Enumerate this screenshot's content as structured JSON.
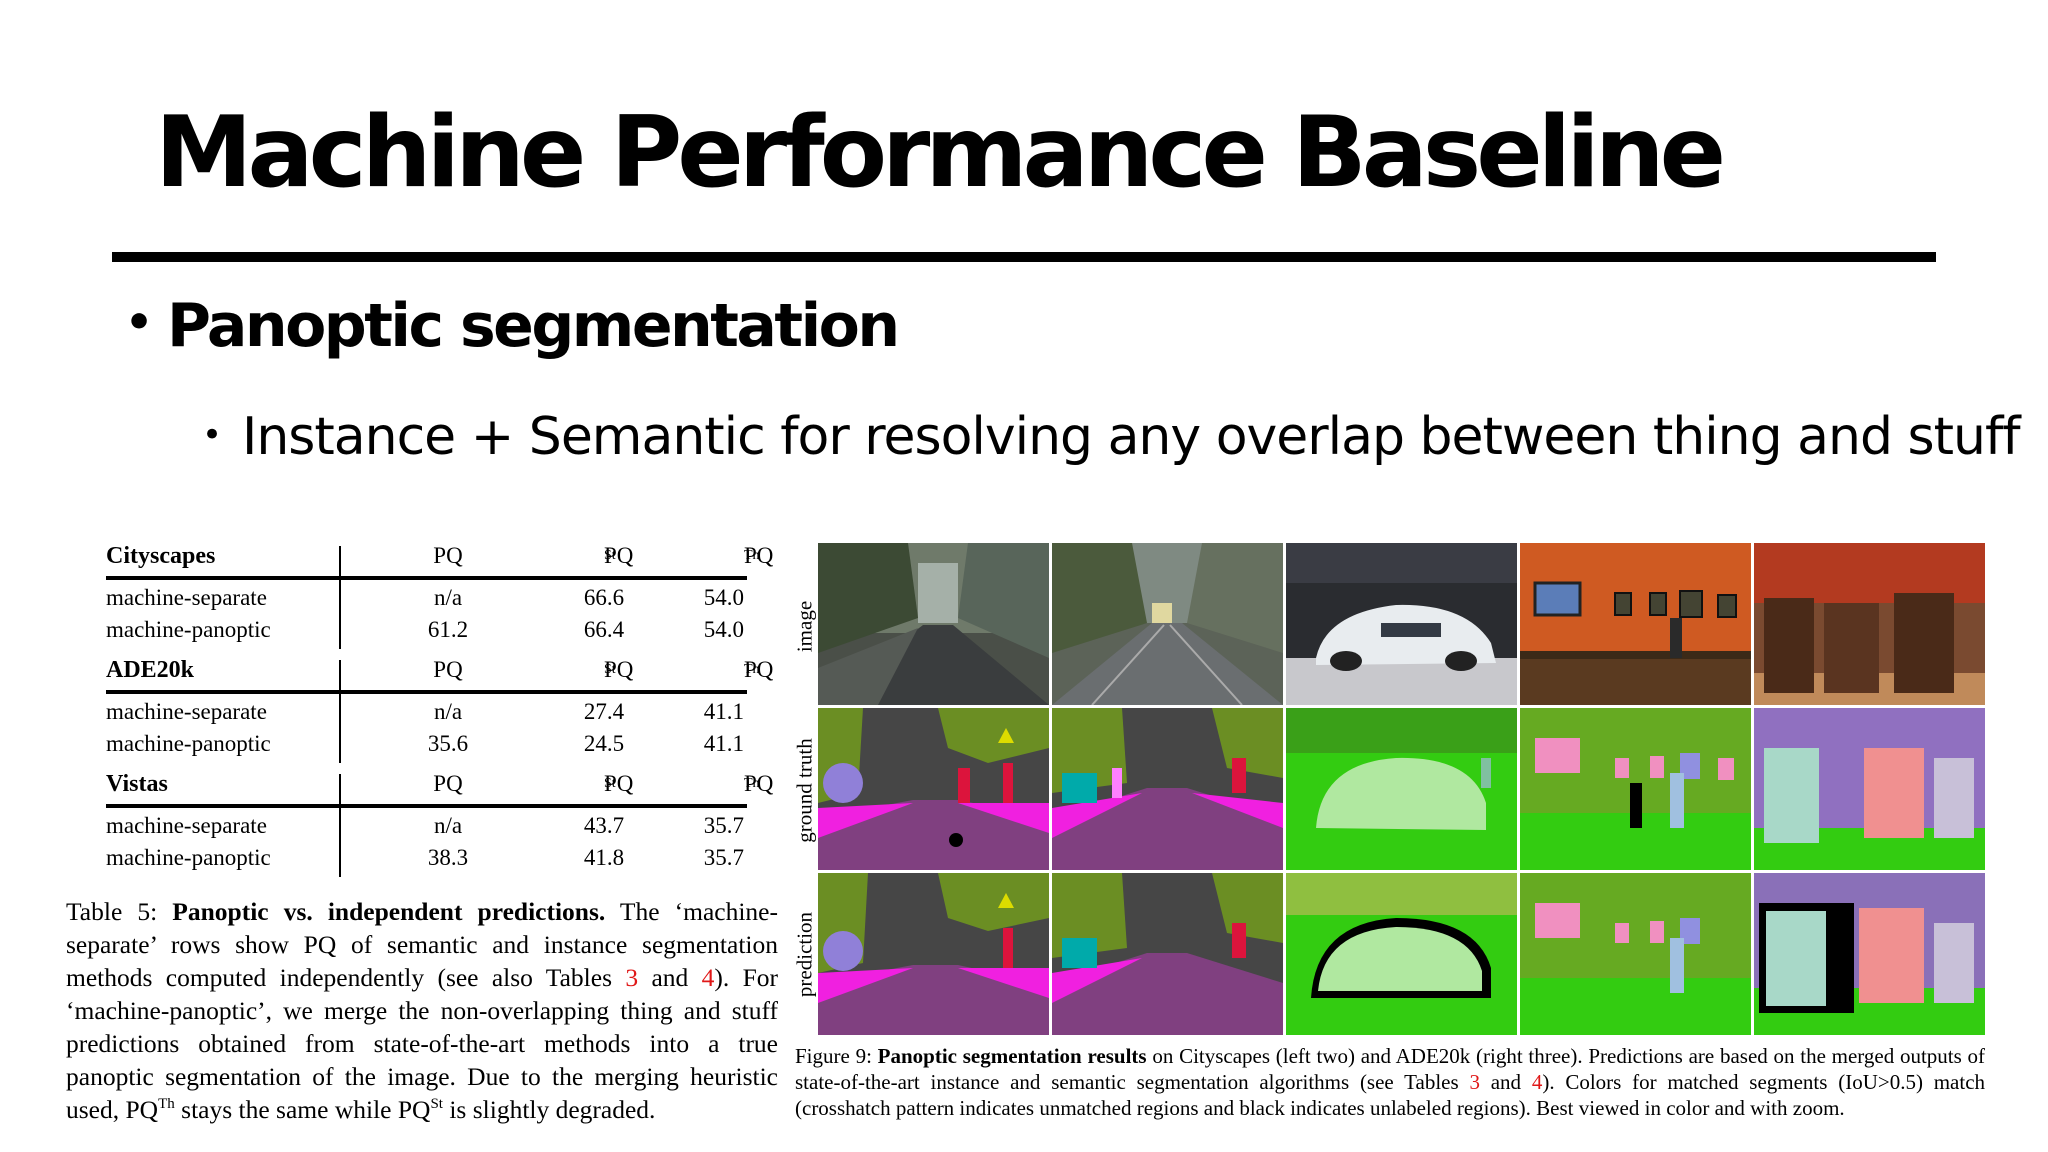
{
  "slide": {
    "title": "Machine Performance Baseline",
    "bullet1": "Panoptic segmentation",
    "bullet2": "Instance + Semantic for resolving any overlap between thing and stuff",
    "bullet_char": "•"
  },
  "table": {
    "blocks": [
      {
        "dataset": "Cityscapes",
        "rows": [
          {
            "method": "machine-separate",
            "pq": "n/a",
            "pq_st": "66.6",
            "pq_th": "54.0"
          },
          {
            "method": "machine-panoptic",
            "pq": "61.2",
            "pq_st": "66.4",
            "pq_th": "54.0"
          }
        ]
      },
      {
        "dataset": "ADE20k",
        "rows": [
          {
            "method": "machine-separate",
            "pq": "n/a",
            "pq_st": "27.4",
            "pq_th": "41.1"
          },
          {
            "method": "machine-panoptic",
            "pq": "35.6",
            "pq_st": "24.5",
            "pq_th": "41.1"
          }
        ]
      },
      {
        "dataset": "Vistas",
        "rows": [
          {
            "method": "machine-separate",
            "pq": "n/a",
            "pq_st": "43.7",
            "pq_th": "35.7"
          },
          {
            "method": "machine-panoptic",
            "pq": "38.3",
            "pq_st": "41.8",
            "pq_th": "35.7"
          }
        ]
      }
    ],
    "col_pq": "PQ",
    "sup_st": "St",
    "sup_th": "Th"
  },
  "caption5": {
    "label": "Table 5:",
    "bold": "Panoptic vs. independent predictions.",
    "t1": "The ‘machine-separate’ rows show PQ of semantic and instance segmentation methods computed independently (see also Tables",
    "ref3": "3",
    "and": "and",
    "ref4": "4",
    "t2": "). For ‘machine-panoptic’, we merge the non-overlapping thing and stuff predictions obtained from state-of-the-art methods into a true panoptic segmentation of the image. Due to the merging heuristic used, PQ",
    "sup_th": "Th",
    "t3": "stays the same while PQ",
    "sup_st": "St",
    "t4": "is slightly degraded."
  },
  "figure": {
    "row_labels": [
      "image",
      "ground truth",
      "prediction"
    ]
  },
  "caption9": {
    "label": "Figure 9:",
    "bold": "Panoptic segmentation results",
    "t1": "on Cityscapes (left two) and ADE20k (right three). Predictions are based on the merged outputs of state-of-the-art instance and semantic segmentation algorithms (see Tables",
    "ref3": "3",
    "and": "and",
    "ref4": "4",
    "t2": "). Colors for matched segments (IoU>0.5) match (crosshatch pattern indicates unmatched regions and black indicates unlabeled regions). Best viewed in color and with zoom."
  },
  "colors": {
    "reference_red": "#e01818",
    "road_purple": "#804080",
    "sidewalk_magenta": "#f020e0",
    "vegetation_olive": "#6b8e23",
    "ade_green": "#33cc11",
    "car_lightgreen": "#b0e8a0"
  }
}
